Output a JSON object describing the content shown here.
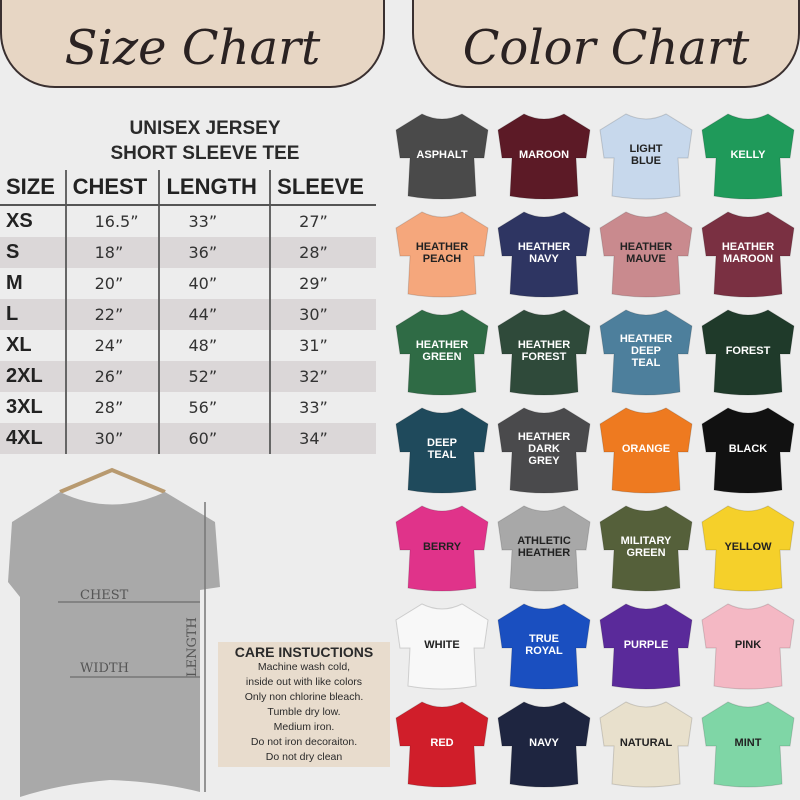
{
  "header": {
    "size_title": "Size Chart",
    "color_title": "Color Chart"
  },
  "product": {
    "line1": "UNISEX JERSEY",
    "line2": "SHORT SLEEVE TEE"
  },
  "table": {
    "headers": [
      "SIZE",
      "CHEST",
      "LENGTH",
      "SLEEVE"
    ],
    "rows": [
      [
        "XS",
        "16.5”",
        "33”",
        "27”"
      ],
      [
        "S",
        "18”",
        "36”",
        "28”"
      ],
      [
        "M",
        "20”",
        "40”",
        "29”"
      ],
      [
        "L",
        "22”",
        "44”",
        "30”"
      ],
      [
        "XL",
        "24”",
        "48”",
        "31”"
      ],
      [
        "2XL",
        "26”",
        "52”",
        "32”"
      ],
      [
        "3XL",
        "28”",
        "56”",
        "33”"
      ],
      [
        "4XL",
        "30”",
        "60”",
        "34”"
      ]
    ]
  },
  "diagram": {
    "chest": "CHEST",
    "width": "WIDTH",
    "length": "LENGTH"
  },
  "care": {
    "title": "CARE INSTUCTIONS",
    "lines": [
      "Machine wash cold,",
      "inside out with like colors",
      "Only non chlorine bleach.",
      "Tumble dry low.",
      "Medium iron.",
      "Do not iron decoraiton.",
      "Do not dry clean"
    ]
  },
  "colors": [
    {
      "label": "ASPHALT",
      "color": "#4a4a4a",
      "text": "#ffffff"
    },
    {
      "label": "MAROON",
      "color": "#5c1a26",
      "text": "#ffffff"
    },
    {
      "label": "LIGHT\nBLUE",
      "color": "#c7d8ec",
      "text": "#222222"
    },
    {
      "label": "KELLY",
      "color": "#1f9a5a",
      "text": "#ffffff"
    },
    {
      "label": "HEATHER\nPEACH",
      "color": "#f5a77c",
      "text": "#222222"
    },
    {
      "label": "HEATHER\nNAVY",
      "color": "#2e3562",
      "text": "#ffffff"
    },
    {
      "label": "HEATHER\nMAUVE",
      "color": "#c98a8e",
      "text": "#222222"
    },
    {
      "label": "HEATHER\nMAROON",
      "color": "#7a3042",
      "text": "#ffffff"
    },
    {
      "label": "HEATHER\nGREEN",
      "color": "#2f6b45",
      "text": "#ffffff"
    },
    {
      "label": "HEATHER\nFOREST",
      "color": "#2f4a3a",
      "text": "#ffffff"
    },
    {
      "label": "HEATHER\nDEEP\nTEAL",
      "color": "#4d7f9c",
      "text": "#ffffff"
    },
    {
      "label": "FOREST",
      "color": "#1f3a2a",
      "text": "#ffffff"
    },
    {
      "label": "DEEP\nTEAL",
      "color": "#1f4a5c",
      "text": "#ffffff"
    },
    {
      "label": "HEATHER\nDARK\nGREY",
      "color": "#4a4a4c",
      "text": "#ffffff"
    },
    {
      "label": "ORANGE",
      "color": "#ee7a20",
      "text": "#ffffff"
    },
    {
      "label": "BLACK",
      "color": "#111111",
      "text": "#ffffff"
    },
    {
      "label": "BERRY",
      "color": "#e0338a",
      "text": "#222222"
    },
    {
      "label": "ATHLETIC\nHEATHER",
      "color": "#a8a8a8",
      "text": "#222222"
    },
    {
      "label": "MILITARY\nGREEN",
      "color": "#55603a",
      "text": "#ffffff"
    },
    {
      "label": "YELLOW",
      "color": "#f5d02a",
      "text": "#222222"
    },
    {
      "label": "WHITE",
      "color": "#f8f8f8",
      "text": "#222222"
    },
    {
      "label": "TRUE\nROYAL",
      "color": "#1a4fc0",
      "text": "#ffffff"
    },
    {
      "label": "PURPLE",
      "color": "#5a2a9a",
      "text": "#ffffff"
    },
    {
      "label": "PINK",
      "color": "#f4b8c4",
      "text": "#222222"
    },
    {
      "label": "RED",
      "color": "#d01e2a",
      "text": "#ffffff"
    },
    {
      "label": "NAVY",
      "color": "#1e2540",
      "text": "#ffffff"
    },
    {
      "label": "NATURAL",
      "color": "#e8e0cc",
      "text": "#222222"
    },
    {
      "label": "MINT",
      "color": "#7fd6a6",
      "text": "#222222"
    }
  ]
}
